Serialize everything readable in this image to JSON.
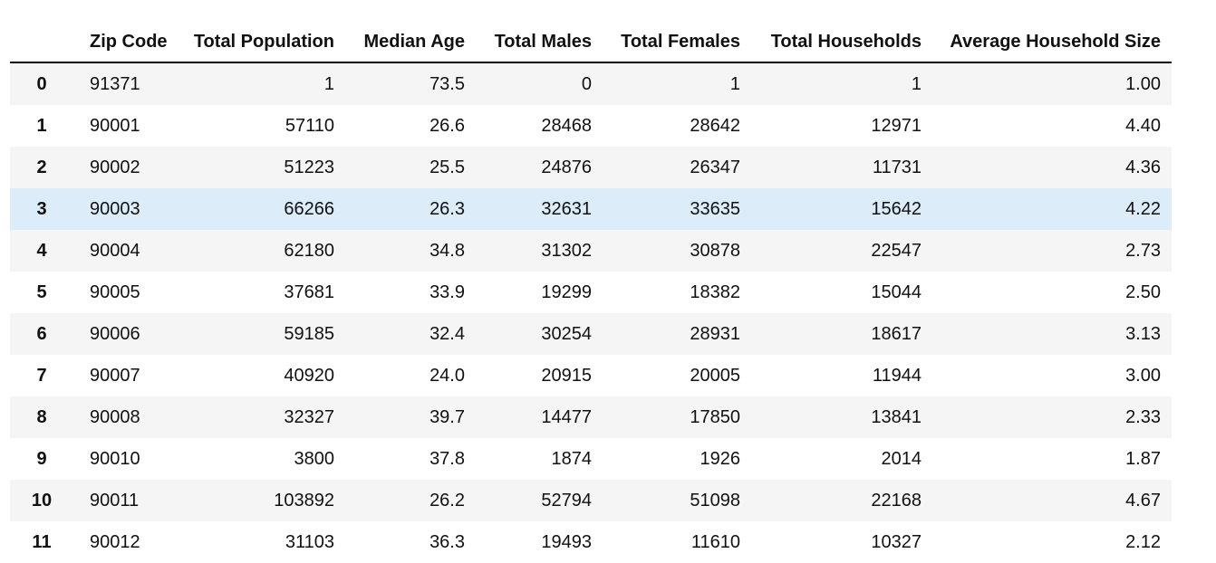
{
  "table": {
    "columns": [
      "",
      "Zip Code",
      "Total Population",
      "Median Age",
      "Total Males",
      "Total Females",
      "Total Households",
      "Average Household Size"
    ],
    "rows": [
      {
        "index": "0",
        "zip": "91371",
        "pop": "1",
        "age": "73.5",
        "males": "0",
        "females": "1",
        "hh": "1",
        "avg": "1.00"
      },
      {
        "index": "1",
        "zip": "90001",
        "pop": "57110",
        "age": "26.6",
        "males": "28468",
        "females": "28642",
        "hh": "12971",
        "avg": "4.40"
      },
      {
        "index": "2",
        "zip": "90002",
        "pop": "51223",
        "age": "25.5",
        "males": "24876",
        "females": "26347",
        "hh": "11731",
        "avg": "4.36"
      },
      {
        "index": "3",
        "zip": "90003",
        "pop": "66266",
        "age": "26.3",
        "males": "32631",
        "females": "33635",
        "hh": "15642",
        "avg": "4.22"
      },
      {
        "index": "4",
        "zip": "90004",
        "pop": "62180",
        "age": "34.8",
        "males": "31302",
        "females": "30878",
        "hh": "22547",
        "avg": "2.73"
      },
      {
        "index": "5",
        "zip": "90005",
        "pop": "37681",
        "age": "33.9",
        "males": "19299",
        "females": "18382",
        "hh": "15044",
        "avg": "2.50"
      },
      {
        "index": "6",
        "zip": "90006",
        "pop": "59185",
        "age": "32.4",
        "males": "30254",
        "females": "28931",
        "hh": "18617",
        "avg": "3.13"
      },
      {
        "index": "7",
        "zip": "90007",
        "pop": "40920",
        "age": "24.0",
        "males": "20915",
        "females": "20005",
        "hh": "11944",
        "avg": "3.00"
      },
      {
        "index": "8",
        "zip": "90008",
        "pop": "32327",
        "age": "39.7",
        "males": "14477",
        "females": "17850",
        "hh": "13841",
        "avg": "2.33"
      },
      {
        "index": "9",
        "zip": "90010",
        "pop": "3800",
        "age": "37.8",
        "males": "1874",
        "females": "1926",
        "hh": "2014",
        "avg": "1.87"
      },
      {
        "index": "10",
        "zip": "90011",
        "pop": "103892",
        "age": "26.2",
        "males": "52794",
        "females": "51098",
        "hh": "22168",
        "avg": "4.67"
      },
      {
        "index": "11",
        "zip": "90012",
        "pop": "31103",
        "age": "36.3",
        "males": "19493",
        "females": "11610",
        "hh": "10327",
        "avg": "2.12"
      }
    ]
  },
  "colors": {
    "header_rule": "#000000",
    "stripe": "#f5f5f5",
    "hover": "#dcecf9"
  }
}
